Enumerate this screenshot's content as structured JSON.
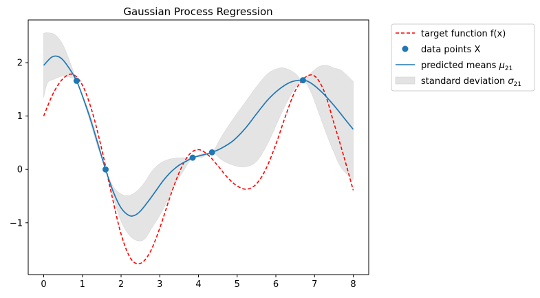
{
  "chart_data": {
    "type": "line",
    "title": "Gaussian Process Regression",
    "xlabel": "",
    "ylabel": "",
    "xlim": [
      -0.4,
      8.4
    ],
    "ylim": [
      -1.97,
      2.8
    ],
    "xticks": [
      0,
      1,
      2,
      3,
      4,
      5,
      6,
      7,
      8
    ],
    "yticks": [
      -1,
      0,
      1,
      2
    ],
    "ytick_labels": [
      "−1",
      "0",
      "1",
      "2"
    ],
    "grid": false,
    "legend_position": "outside-top-right",
    "colors": {
      "target": "#ff0000",
      "points": "#1f77b4",
      "mean": "#1f77b4",
      "band": "#d9d9d9"
    },
    "series": [
      {
        "name": "target function f(x)",
        "style": "dashed",
        "x": [
          0,
          0.25,
          0.5,
          0.75,
          1.0,
          1.25,
          1.5,
          1.75,
          2.0,
          2.25,
          2.5,
          2.75,
          3.0,
          3.25,
          3.5,
          3.75,
          4.0,
          4.25,
          4.5,
          4.75,
          5.0,
          5.25,
          5.5,
          5.75,
          6.0,
          6.25,
          6.5,
          6.75,
          7.0,
          7.25,
          7.5,
          7.75,
          8.0
        ],
        "y": [
          1.0,
          1.43,
          1.7,
          1.78,
          1.58,
          1.09,
          0.38,
          -0.45,
          -1.21,
          -1.67,
          -1.76,
          -1.55,
          -1.1,
          -0.55,
          -0.06,
          0.27,
          0.37,
          0.27,
          0.07,
          -0.15,
          -0.31,
          -0.37,
          -0.27,
          0.02,
          0.47,
          1.0,
          1.47,
          1.72,
          1.75,
          1.46,
          0.87,
          0.26,
          -0.39
        ]
      },
      {
        "name": "data points X",
        "style": "markers",
        "x": [
          0.85,
          1.6,
          3.85,
          4.35,
          6.7
        ],
        "y": [
          1.66,
          0.0,
          0.22,
          0.32,
          1.67
        ]
      },
      {
        "name": "predicted means μ21",
        "style": "solid",
        "x": [
          0,
          0.2,
          0.35,
          0.5,
          0.7,
          0.85,
          1.0,
          1.2,
          1.4,
          1.6,
          1.8,
          2.0,
          2.2,
          2.35,
          2.5,
          2.7,
          2.9,
          3.1,
          3.3,
          3.5,
          3.7,
          3.85,
          4.1,
          4.35,
          4.6,
          4.9,
          5.2,
          5.5,
          5.8,
          6.1,
          6.4,
          6.7,
          6.9,
          7.2,
          7.5,
          7.8,
          8.0
        ],
        "y": [
          1.95,
          2.1,
          2.12,
          2.05,
          1.85,
          1.66,
          1.38,
          0.96,
          0.48,
          0.0,
          -0.42,
          -0.72,
          -0.86,
          -0.86,
          -0.78,
          -0.6,
          -0.4,
          -0.2,
          -0.04,
          0.08,
          0.16,
          0.22,
          0.27,
          0.32,
          0.4,
          0.54,
          0.76,
          1.04,
          1.31,
          1.51,
          1.64,
          1.67,
          1.62,
          1.44,
          1.2,
          0.93,
          0.75
        ]
      },
      {
        "name": "standard deviation σ21",
        "style": "band",
        "x": [
          0,
          0.1,
          0.3,
          0.5,
          0.7,
          0.85,
          1.0,
          1.2,
          1.4,
          1.6,
          1.8,
          2.0,
          2.2,
          2.4,
          2.6,
          2.8,
          3.0,
          3.2,
          3.4,
          3.6,
          3.85,
          4.1,
          4.35,
          4.6,
          4.9,
          5.2,
          5.5,
          5.8,
          6.1,
          6.3,
          6.5,
          6.7,
          6.9,
          7.1,
          7.3,
          7.5,
          7.7,
          8.0
        ],
        "upper": [
          2.55,
          2.56,
          2.52,
          2.33,
          1.97,
          1.66,
          1.4,
          1.02,
          0.55,
          0.0,
          -0.32,
          -0.46,
          -0.49,
          -0.41,
          -0.25,
          -0.03,
          0.11,
          0.18,
          0.21,
          0.22,
          0.22,
          0.3,
          0.32,
          0.62,
          0.95,
          1.25,
          1.55,
          1.8,
          1.9,
          1.88,
          1.8,
          1.67,
          1.8,
          1.92,
          1.95,
          1.9,
          1.85,
          1.65
        ],
        "lower": [
          1.35,
          1.62,
          1.7,
          1.75,
          1.72,
          1.66,
          1.35,
          0.9,
          0.41,
          0.0,
          -0.52,
          -0.97,
          -1.22,
          -1.33,
          -1.31,
          -1.09,
          -0.86,
          -0.58,
          -0.27,
          -0.04,
          0.22,
          0.23,
          0.32,
          0.18,
          0.08,
          0.05,
          0.15,
          0.5,
          0.98,
          1.28,
          1.53,
          1.67,
          1.46,
          1.08,
          0.68,
          0.32,
          0.02,
          -0.2
        ]
      }
    ]
  },
  "legend": {
    "target_label": "target function f(x)",
    "points_label": "data points X",
    "mean_label": "predicted means ",
    "mean_symbol": "μ",
    "mean_sub": "21",
    "std_label": "standard deviation ",
    "std_symbol": "σ",
    "std_sub": "21"
  }
}
